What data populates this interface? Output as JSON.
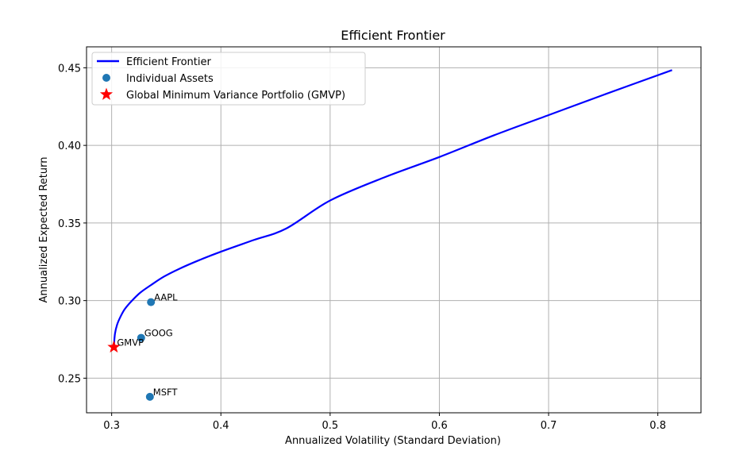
{
  "chart_data": {
    "type": "line",
    "title": "Efficient Frontier",
    "xlabel": "Annualized Volatility (Standard Deviation)",
    "ylabel": "Annualized Expected Return",
    "xlim": [
      0.277,
      0.8395
    ],
    "ylim": [
      0.2277,
      0.4635
    ],
    "xticks": [
      0.3,
      0.4,
      0.5,
      0.6,
      0.7,
      0.8
    ],
    "xtick_labels": [
      "0.3",
      "0.4",
      "0.5",
      "0.6",
      "0.7",
      "0.8"
    ],
    "yticks": [
      0.25,
      0.3,
      0.35,
      0.4,
      0.45
    ],
    "ytick_labels": [
      "0.25",
      "0.30",
      "0.35",
      "0.40",
      "0.45"
    ],
    "grid": true,
    "legend_position": "top-left",
    "series": [
      {
        "name": "Efficient Frontier",
        "kind": "line",
        "color": "#0000ff",
        "x": [
          0.302,
          0.303,
          0.305,
          0.308,
          0.312,
          0.318,
          0.326,
          0.336,
          0.348,
          0.362,
          0.38,
          0.4,
          0.43,
          0.46,
          0.5,
          0.55,
          0.6,
          0.65,
          0.7,
          0.75,
          0.813
        ],
        "y": [
          0.27,
          0.2785,
          0.2845,
          0.2895,
          0.2945,
          0.2995,
          0.305,
          0.31,
          0.3155,
          0.3205,
          0.326,
          0.3315,
          0.339,
          0.3465,
          0.3645,
          0.3795,
          0.3925,
          0.4065,
          0.4195,
          0.4325,
          0.4485
        ]
      },
      {
        "name": "Individual Assets",
        "kind": "scatter",
        "color": "#1f77b4",
        "points": [
          {
            "label": "AAPL",
            "x": 0.336,
            "y": 0.299
          },
          {
            "label": "GOOG",
            "x": 0.327,
            "y": 0.276
          },
          {
            "label": "MSFT",
            "x": 0.335,
            "y": 0.238
          }
        ]
      },
      {
        "name": "Global Minimum Variance Portfolio (GMVP)",
        "kind": "marker",
        "marker": "star",
        "color": "#ff0000",
        "points": [
          {
            "label": "GMVP",
            "x": 0.302,
            "y": 0.27
          }
        ]
      }
    ]
  }
}
